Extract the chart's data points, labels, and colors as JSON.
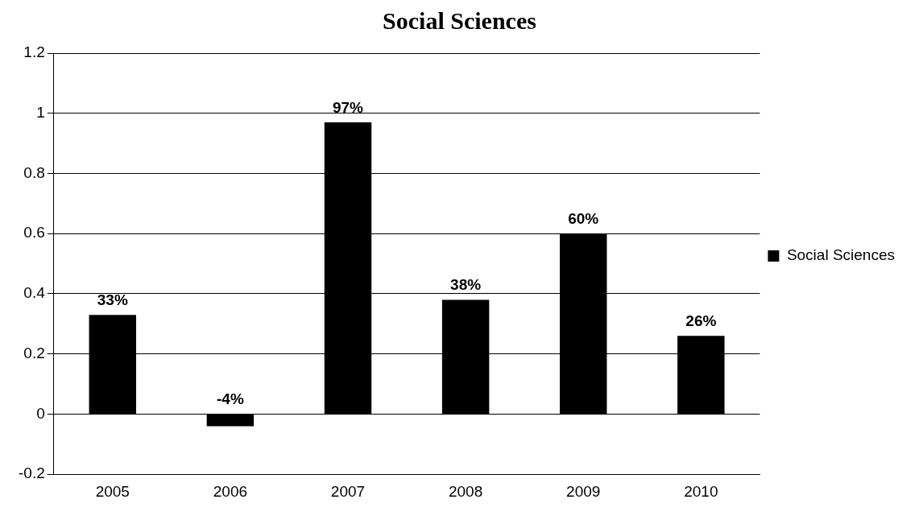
{
  "chart_data": {
    "type": "bar",
    "title": "Social Sciences",
    "categories": [
      "2005",
      "2006",
      "2007",
      "2008",
      "2009",
      "2010"
    ],
    "series": [
      {
        "name": "Social Sciences",
        "color": "#000000",
        "values": [
          0.33,
          -0.04,
          0.97,
          0.38,
          0.6,
          0.26
        ],
        "value_labels": [
          "33%",
          "-4%",
          "97%",
          "38%",
          "60%",
          "26%"
        ]
      }
    ],
    "ylim": [
      -0.2,
      1.2
    ],
    "yticks": [
      -0.2,
      0,
      0.2,
      0.4,
      0.6,
      0.8,
      1,
      1.2
    ],
    "grid": "y",
    "legend": "right"
  }
}
